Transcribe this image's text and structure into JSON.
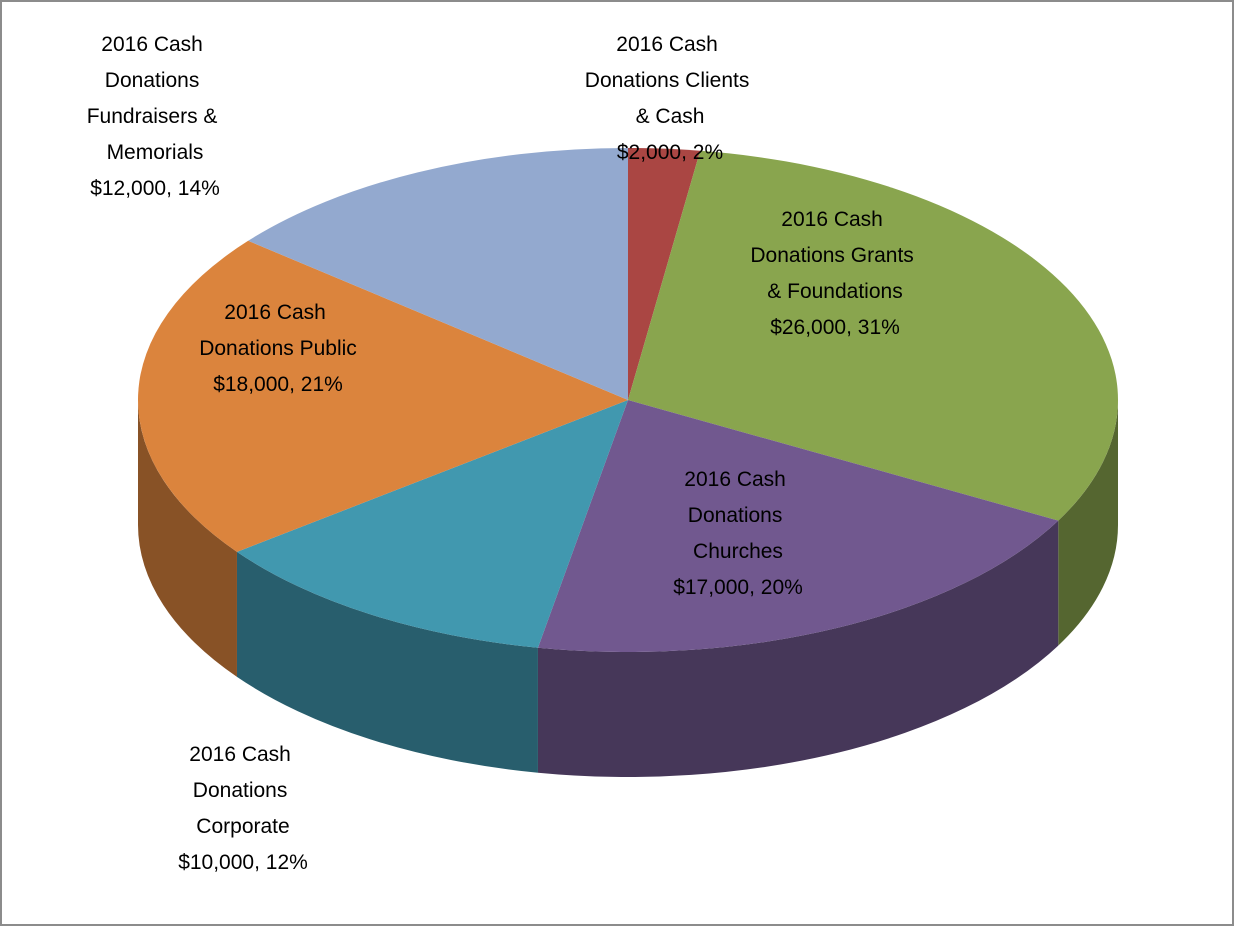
{
  "chart_data": {
    "type": "pie",
    "three_d": true,
    "categories": [
      "2016 Cash Donations Clients & Cash",
      "2016 Cash Donations Grants & Foundations",
      "2016 Cash Donations Churches",
      "2016 Cash Donations Corporate",
      "2016 Cash Donations Public",
      "2016 Cash Donations Fundraisers & Memorials"
    ],
    "values": [
      2000,
      26000,
      17000,
      10000,
      18000,
      12000
    ],
    "value_labels": [
      "$2,000",
      "$26,000",
      "$17,000",
      "$10,000",
      "$18,000",
      "$12,000"
    ],
    "percents": [
      2,
      31,
      20,
      12,
      21,
      14
    ],
    "percent_labels": [
      "2%",
      "31%",
      "20%",
      "12%",
      "21%",
      "14%"
    ],
    "colors": [
      "#aa4643",
      "#89a54e",
      "#71588f",
      "#4198af",
      "#db843d",
      "#93a9cf"
    ]
  }
}
